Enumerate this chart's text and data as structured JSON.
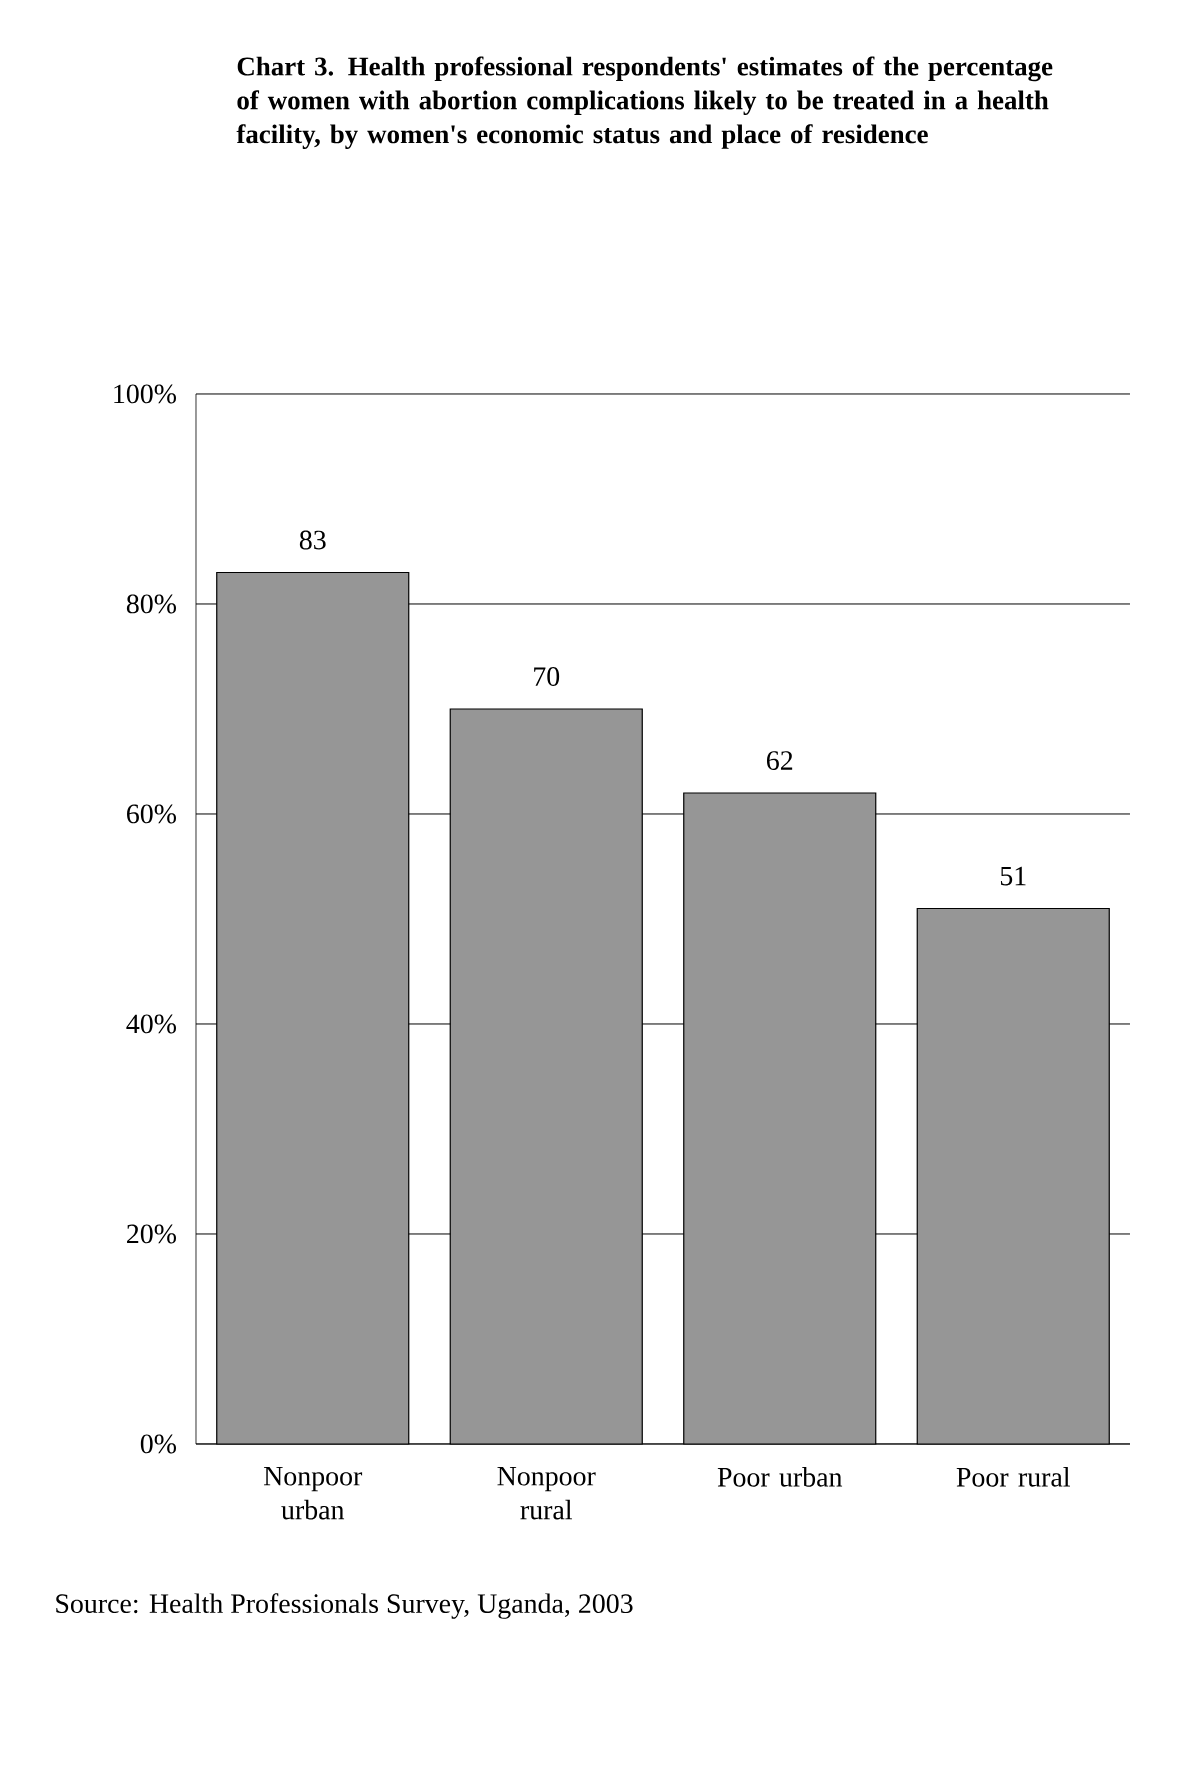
{
  "chart_data": {
    "type": "bar",
    "title": "Chart 3. Health professional respondents' estimates of the percentage of women with abortion complications likely to be treated in a health facility, by women's economic status and place of residence",
    "categories": [
      "Nonpoor urban",
      "Nonpoor rural",
      "Poor urban",
      "Poor rural"
    ],
    "values": [
      83,
      70,
      62,
      51
    ],
    "color": "#969696",
    "data_labels": true,
    "ylim": [
      0,
      100
    ],
    "yticks": [
      {
        "value": 0,
        "label": "0%"
      },
      {
        "value": 20,
        "label": "20%"
      },
      {
        "value": 40,
        "label": "40%"
      },
      {
        "value": 60,
        "label": "60%"
      },
      {
        "value": 80,
        "label": "80%"
      },
      {
        "value": 100,
        "label": "100%"
      }
    ],
    "grid": "y",
    "annotations": [
      "Source: Health Professionals Survey, Uganda, 2003"
    ]
  }
}
